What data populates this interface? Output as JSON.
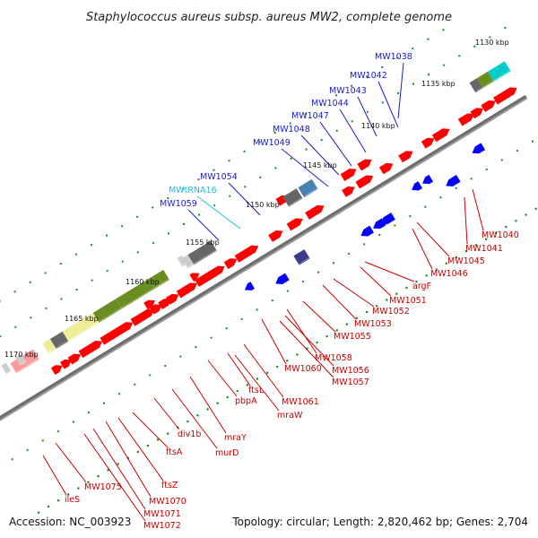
{
  "title": "Staphylococcus aureus subsp. aureus MW2, complete genome",
  "accession": "Accession: NC_003923",
  "topology": "Topology: circular; Length: 2,820,462 bp; Genes: 2,704",
  "colors": {
    "forward_gene": "#ff0000",
    "reverse_gene": "#0000ff",
    "trna": "#33ccee",
    "backbone": "#808080",
    "tick_dots": "#228b22",
    "label_red": "#cc0000",
    "label_blue": "#1a1acc",
    "label_cyan": "#22bbdd",
    "cog_green": "#6b8e23",
    "cog_yellow": "#eeee99",
    "cog_grey": "#666666",
    "cog_steel": "#4682b4",
    "cog_navy": "#3b3b8a",
    "cog_pink": "#ff9999",
    "cog_cyan": "#00cccc"
  },
  "scale_labels": [
    "1130 kbp",
    "1135 kbp",
    "1140 kbp",
    "1145 kbp",
    "1150 kbp",
    "1155 kbp",
    "1160 kbp",
    "1165 kbp",
    "1170 kbp"
  ],
  "blue_labels": [
    "MW1038",
    "MW1042",
    "MW1043",
    "MW1044",
    "MW1047",
    "MW1048",
    "MW1049",
    "MW1054",
    "MW1059"
  ],
  "cyan_labels": [
    "MWtRNA16"
  ],
  "red_labels": [
    "MW1040",
    "MW1041",
    "MW1045",
    "MW1046",
    "argF",
    "MW1051",
    "MW1052",
    "MW1053",
    "MW1055",
    "MW1056",
    "MW1057",
    "MW1058",
    "MW1060",
    "MW1061",
    "mraW",
    "ftsL",
    "pbpA",
    "mraY",
    "murD",
    "div1b",
    "ftsA",
    "ftsZ",
    "MW1070",
    "MW1071",
    "MW1072",
    "MW1075",
    "ileS"
  ]
}
